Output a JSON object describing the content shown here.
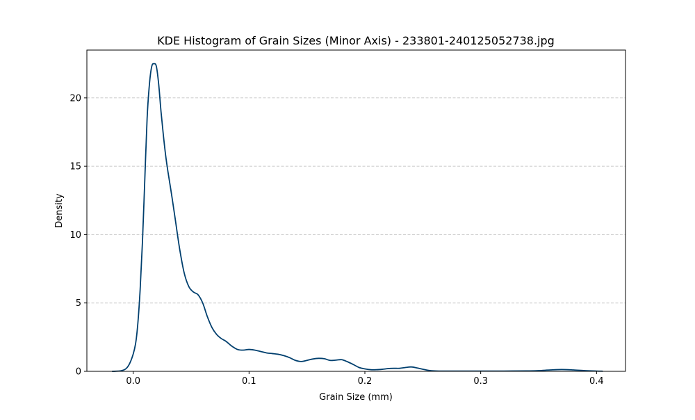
{
  "chart_data": {
    "type": "line",
    "title": "KDE Histogram of Grain Sizes (Minor Axis) - 233801-240125052738.jpg",
    "xlabel": "Grain Size (mm)",
    "ylabel": "Density",
    "xlim": [
      -0.04,
      0.425
    ],
    "ylim": [
      0,
      23.5
    ],
    "xticks": [
      0.0,
      0.1,
      0.2,
      0.3,
      0.4
    ],
    "xtick_labels": [
      "0.0",
      "0.1",
      "0.2",
      "0.3",
      "0.4"
    ],
    "yticks": [
      0,
      5,
      10,
      15,
      20
    ],
    "ytick_labels": [
      "0",
      "5",
      "10",
      "15",
      "20"
    ],
    "grid": "y-axis dashed",
    "legend": "none",
    "line_color": "#003f6e",
    "grid_color": "#c8c8c8",
    "series": [
      {
        "x": [
          -0.018,
          -0.01,
          -0.005,
          -0.001,
          0.002,
          0.004,
          0.006,
          0.008,
          0.01,
          0.012,
          0.014,
          0.016,
          0.018,
          0.02,
          0.022,
          0.024,
          0.026,
          0.028,
          0.03,
          0.033,
          0.036,
          0.04,
          0.044,
          0.048,
          0.052,
          0.056,
          0.06,
          0.064,
          0.068,
          0.072,
          0.076,
          0.08,
          0.085,
          0.09,
          0.095,
          0.1,
          0.105,
          0.11,
          0.115,
          0.12,
          0.125,
          0.13,
          0.135,
          0.14,
          0.145,
          0.15,
          0.155,
          0.16,
          0.165,
          0.17,
          0.175,
          0.18,
          0.185,
          0.19,
          0.195,
          0.2,
          0.205,
          0.21,
          0.215,
          0.22,
          0.225,
          0.23,
          0.235,
          0.24,
          0.245,
          0.25,
          0.255,
          0.26,
          0.265,
          0.27,
          0.28,
          0.3,
          0.32,
          0.34,
          0.35,
          0.36,
          0.37,
          0.38,
          0.39,
          0.4,
          0.405
        ],
        "y": [
          0.0,
          0.05,
          0.3,
          1.0,
          2.0,
          3.5,
          6.0,
          9.5,
          14.0,
          18.5,
          21.0,
          22.3,
          22.5,
          22.3,
          21.0,
          19.0,
          17.3,
          15.8,
          14.6,
          13.0,
          11.3,
          9.0,
          7.2,
          6.2,
          5.8,
          5.6,
          5.0,
          4.0,
          3.2,
          2.7,
          2.4,
          2.2,
          1.85,
          1.6,
          1.55,
          1.6,
          1.55,
          1.45,
          1.35,
          1.3,
          1.25,
          1.15,
          1.0,
          0.8,
          0.72,
          0.8,
          0.9,
          0.95,
          0.92,
          0.8,
          0.82,
          0.85,
          0.7,
          0.5,
          0.28,
          0.18,
          0.12,
          0.12,
          0.15,
          0.2,
          0.22,
          0.22,
          0.28,
          0.32,
          0.25,
          0.15,
          0.07,
          0.03,
          0.02,
          0.02,
          0.02,
          0.02,
          0.02,
          0.03,
          0.05,
          0.1,
          0.13,
          0.1,
          0.05,
          0.02,
          0.01
        ]
      }
    ]
  }
}
